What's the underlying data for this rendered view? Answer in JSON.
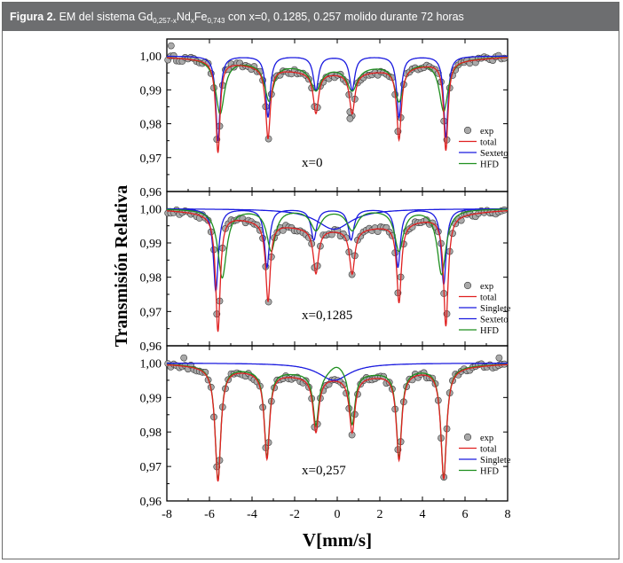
{
  "caption": {
    "label": "Figura 2.",
    "p1": "EM del sistema Gd",
    "s1": "0,257-x",
    "p2": "Nd",
    "s2": "x",
    "p3": "Fe",
    "s3": "0,743",
    "p4": "con x=0, 0.1285, 0.257 molido durante 72 horas"
  },
  "colors": {
    "exp_fill": "#a9a9a9",
    "exp_stroke": "#3a3a3a",
    "total": "#e02020",
    "sexteto": "#1a1adf",
    "singlete": "#1a1adf",
    "hfd": "#1f8f1f",
    "axis": "#000000"
  },
  "chart_data": {
    "type": "scatter",
    "xlabel": "V[mm/s]",
    "ylabel": "Transmisión Relativa",
    "xlim": [
      -8,
      8
    ],
    "x_ticks": [
      "-8",
      "-6",
      "-4",
      "-2",
      "0",
      "2",
      "4",
      "6",
      "8"
    ],
    "panels": [
      {
        "annotation": "x=0",
        "ylim": [
          0.96,
          1.005
        ],
        "y_ticks": [
          "1,00",
          "0,99",
          "0,98",
          "0,97",
          "0,96"
        ],
        "legend": [
          "exp",
          "total",
          "Sexteto",
          "HFD"
        ],
        "lines": [
          {
            "series": "total",
            "baseline": 1.0,
            "lines": [
              {
                "x": -5.6,
                "depth": 0.027,
                "w": 0.12
              },
              {
                "x": -3.25,
                "depth": 0.021,
                "w": 0.13
              },
              {
                "x": -1.0,
                "depth": 0.012,
                "w": 0.15
              },
              {
                "x": 0.7,
                "depth": 0.012,
                "w": 0.15
              },
              {
                "x": 2.9,
                "depth": 0.021,
                "w": 0.13
              },
              {
                "x": 5.1,
                "depth": 0.026,
                "w": 0.12
              }
            ],
            "broad": {
              "depth": 0.005,
              "w": 3.6
            }
          },
          {
            "series": "Sexteto",
            "baseline": 1.0,
            "lines": [
              {
                "x": -5.6,
                "depth": 0.025,
                "w": 0.12
              },
              {
                "x": -3.25,
                "depth": 0.018,
                "w": 0.13
              },
              {
                "x": -1.0,
                "depth": 0.01,
                "w": 0.15
              },
              {
                "x": 0.7,
                "depth": 0.01,
                "w": 0.15
              },
              {
                "x": 2.9,
                "depth": 0.018,
                "w": 0.13
              },
              {
                "x": 5.1,
                "depth": 0.024,
                "w": 0.12
              }
            ]
          },
          {
            "series": "HFD",
            "baseline": 1.0,
            "lines": [
              {
                "x": -5.5,
                "depth": 0.016,
                "w": 0.25
              },
              {
                "x": -3.2,
                "depth": 0.011,
                "w": 0.25
              },
              {
                "x": -1.0,
                "depth": 0.007,
                "w": 0.3
              },
              {
                "x": 0.7,
                "depth": 0.007,
                "w": 0.3
              },
              {
                "x": 2.9,
                "depth": 0.011,
                "w": 0.25
              },
              {
                "x": 5.0,
                "depth": 0.015,
                "w": 0.25
              }
            ],
            "broad": {
              "depth": 0.003,
              "w": 3.6
            }
          }
        ],
        "exp_outliers": [
          {
            "x": 0.6,
            "y": 0.9815
          },
          {
            "x": 0.6,
            "y": 0.9835
          },
          {
            "x": -7.8,
            "y": 1.003
          }
        ]
      },
      {
        "annotation": "x=0,1285",
        "ylim": [
          0.96,
          1.005
        ],
        "y_ticks": [
          "1,00",
          "0,99",
          "0,98",
          "0,97",
          "0,96"
        ],
        "legend": [
          "exp",
          "total",
          "Singlete",
          "Sexteto",
          "HFD"
        ],
        "lines": [
          {
            "series": "total",
            "baseline": 1.0,
            "lines": [
              {
                "x": -5.6,
                "depth": 0.034,
                "w": 0.13
              },
              {
                "x": -3.25,
                "depth": 0.023,
                "w": 0.13
              },
              {
                "x": -1.0,
                "depth": 0.013,
                "w": 0.15
              },
              {
                "x": 0.7,
                "depth": 0.013,
                "w": 0.15
              },
              {
                "x": 2.9,
                "depth": 0.023,
                "w": 0.13
              },
              {
                "x": 5.1,
                "depth": 0.032,
                "w": 0.13
              }
            ],
            "broad": {
              "depth": 0.006,
              "w": 3.6
            }
          },
          {
            "series": "Singlete",
            "baseline": 1.0,
            "lines": [
              {
                "x": -0.15,
                "depth": 0.006,
                "w": 1.0
              }
            ]
          },
          {
            "series": "Sexteto",
            "baseline": 1.0,
            "lines": [
              {
                "x": -5.7,
                "depth": 0.024,
                "w": 0.14
              },
              {
                "x": -3.3,
                "depth": 0.017,
                "w": 0.14
              },
              {
                "x": -1.1,
                "depth": 0.009,
                "w": 0.16
              },
              {
                "x": 0.65,
                "depth": 0.009,
                "w": 0.16
              },
              {
                "x": 2.85,
                "depth": 0.017,
                "w": 0.14
              },
              {
                "x": 5.0,
                "depth": 0.022,
                "w": 0.14
              }
            ]
          },
          {
            "series": "HFD",
            "baseline": 1.0,
            "lines": [
              {
                "x": -5.4,
                "depth": 0.02,
                "w": 0.25
              },
              {
                "x": -3.1,
                "depth": 0.012,
                "w": 0.25
              },
              {
                "x": -1.0,
                "depth": 0.006,
                "w": 0.3
              },
              {
                "x": 0.7,
                "depth": 0.006,
                "w": 0.3
              },
              {
                "x": 2.9,
                "depth": 0.012,
                "w": 0.25
              },
              {
                "x": 4.9,
                "depth": 0.019,
                "w": 0.25
              }
            ]
          }
        ],
        "exp_outliers": []
      },
      {
        "annotation": "x=0,257",
        "ylim": [
          0.96,
          1.005
        ],
        "y_ticks": [
          "1,00",
          "0,99",
          "0,98",
          "0,97",
          "0,96"
        ],
        "legend": [
          "exp",
          "total",
          "Singlete",
          "HFD"
        ],
        "lines": [
          {
            "series": "total",
            "baseline": 1.0,
            "lines": [
              {
                "x": -5.6,
                "depth": 0.033,
                "w": 0.16
              },
              {
                "x": -3.3,
                "depth": 0.025,
                "w": 0.15
              },
              {
                "x": -1.0,
                "depth": 0.016,
                "w": 0.16
              },
              {
                "x": 0.7,
                "depth": 0.016,
                "w": 0.16
              },
              {
                "x": 2.9,
                "depth": 0.025,
                "w": 0.15
              },
              {
                "x": 5.0,
                "depth": 0.032,
                "w": 0.16
              }
            ],
            "broad": {
              "depth": 0.004,
              "w": 3.6
            }
          },
          {
            "series": "Singlete",
            "baseline": 1.0,
            "lines": [
              {
                "x": -0.15,
                "depth": 0.005,
                "w": 0.9
              }
            ]
          },
          {
            "series": "HFD",
            "baseline": 1.0,
            "lines": [
              {
                "x": -5.6,
                "depth": 0.033,
                "w": 0.16
              },
              {
                "x": -3.3,
                "depth": 0.025,
                "w": 0.15
              },
              {
                "x": -1.0,
                "depth": 0.015,
                "w": 0.16
              },
              {
                "x": 0.7,
                "depth": 0.015,
                "w": 0.16
              },
              {
                "x": 2.9,
                "depth": 0.025,
                "w": 0.15
              },
              {
                "x": 5.0,
                "depth": 0.032,
                "w": 0.16
              }
            ],
            "broad": {
              "depth": 0.003,
              "w": 3.6
            },
            "center_bump": 0.003
          }
        ],
        "exp_outliers": [
          {
            "x": -7.2,
            "y": 1.0015
          },
          {
            "x": 7.6,
            "y": 1.0015
          }
        ]
      }
    ]
  }
}
